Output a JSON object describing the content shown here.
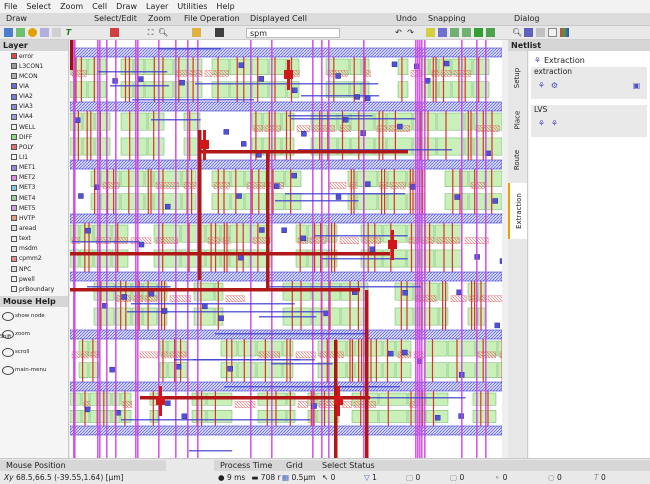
{
  "menu": [
    "File",
    "Select",
    "Zoom",
    "Cell",
    "Draw",
    "Layer",
    "Utilities",
    "Help"
  ],
  "toolbar": {
    "groups": {
      "draw": "Draw",
      "select_edit": "Select/Edit",
      "zoom": "Zoom",
      "file_operation": "File Operation",
      "displayed_cell": "Displayed Cell",
      "undo": "Undo",
      "snapping": "Snapping",
      "dialog": "Dialog"
    },
    "cell_value": "spm"
  },
  "layer_panel": {
    "title": "Layer",
    "layers": [
      {
        "name": "error",
        "color": "#d94a4a"
      },
      {
        "name": "L3CON1",
        "color": "#9a9a9a"
      },
      {
        "name": "MCON",
        "color": "#b0b0b0"
      },
      {
        "name": "VIA",
        "color": "#6d6dd8"
      },
      {
        "name": "VIA2",
        "color": "#7a7ad8"
      },
      {
        "name": "VIA3",
        "color": "#8a8ad8"
      },
      {
        "name": "VIA4",
        "color": "#9c9cd8"
      },
      {
        "name": "WELL",
        "color": "#f0f0f0"
      },
      {
        "name": "DIFF",
        "color": "#8fd97f"
      },
      {
        "name": "POLY",
        "color": "#e86e6e"
      },
      {
        "name": "LI1",
        "color": "#f2f2f2"
      },
      {
        "name": "MET1",
        "color": "#8c8ce0"
      },
      {
        "name": "MET2",
        "color": "#e08ce0"
      },
      {
        "name": "MET3",
        "color": "#7fc8e0"
      },
      {
        "name": "MET4",
        "color": "#a0d0a0"
      },
      {
        "name": "MET5",
        "color": "#d0a0e0"
      },
      {
        "name": "HVTP",
        "color": "#e0a080"
      },
      {
        "name": "aread",
        "color": "#dddddd"
      },
      {
        "name": "text",
        "color": "#eeeeee"
      },
      {
        "name": "msdm",
        "color": "#e0e0e0"
      },
      {
        "name": "cpmm2",
        "color": "#e88c8c"
      },
      {
        "name": "NPC",
        "color": "#dcdcdc"
      },
      {
        "name": "pwell",
        "color": "#f0f0f0"
      },
      {
        "name": "prBoundary",
        "color": "#f0f0f0"
      }
    ]
  },
  "mouse_help": {
    "title": "Mouse Help",
    "items": [
      "show node",
      "zoom",
      "scroll",
      "main-menu"
    ],
    "shift_label": "Shift"
  },
  "netlist": {
    "title": "Netlist",
    "tabs": [
      "Setup",
      "Place",
      "Route",
      "Extraction"
    ],
    "extraction_title": "Extraction",
    "extraction_section": "extraction",
    "lvs_section": "LVS"
  },
  "status": {
    "mouse_position_label": "Mouse Position",
    "mouse_position_value": "68.5,66.5 (-39.55,1.64) [μm]",
    "process_time_label": "Process Time",
    "process_time_value": "9 ms",
    "memory_value": "708 r",
    "grid_label": "Grid",
    "grid_value": "0.5μm",
    "select_status_label": "Select Status",
    "counts": [
      "0",
      "1",
      "0",
      "0",
      "0",
      "0",
      "0"
    ]
  }
}
